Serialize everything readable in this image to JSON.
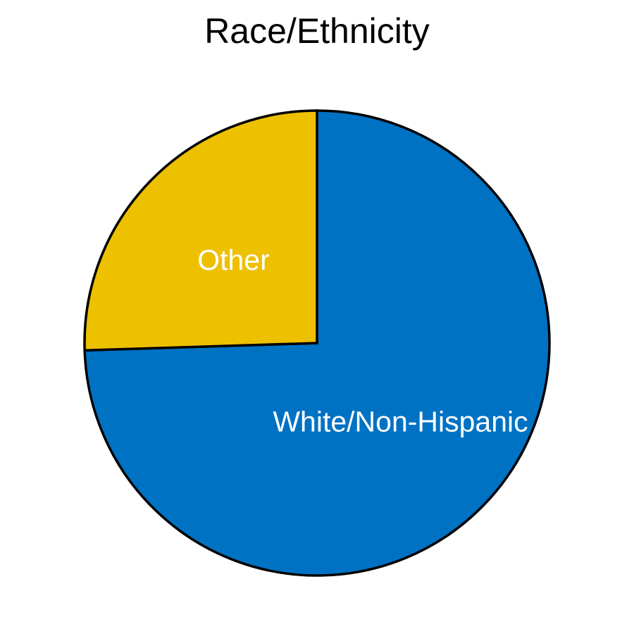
{
  "chart_data": {
    "type": "pie",
    "title": "Race/Ethnicity",
    "categories": [
      "White/Non-Hispanic",
      "Other"
    ],
    "values": [
      74.5,
      25.5
    ],
    "colors": [
      "#0072C4",
      "#EDC000"
    ],
    "start": "top",
    "direction": "clockwise",
    "legend": "none"
  }
}
